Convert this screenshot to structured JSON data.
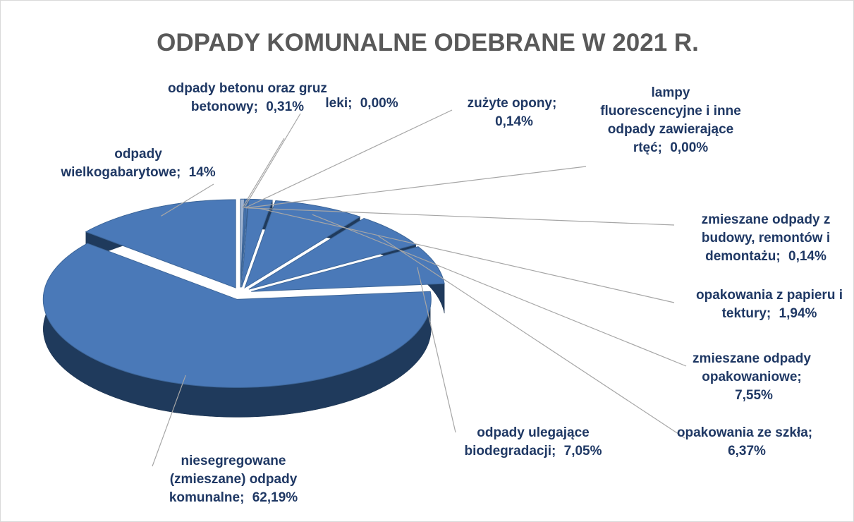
{
  "chart_data": {
    "type": "pie",
    "title": "ODPADY KOMUNALNE ODEBRANE W 2021 R.",
    "categories": [
      "odpady betonu oraz gruz betonowy;",
      "leki;",
      "zużyte opony;",
      "lampy fluorescencyjne i inne odpady zawierające rtęć;",
      "zmieszane odpady z budowy, remontów i demontażu;",
      "opakowania z papieru i tektury;",
      "zmieszane odpady opakowaniowe;",
      "opakowania ze szkła;",
      "odpady ulegające biodegradacji;",
      "niesegregowane (zmieszane) odpady komunalne;",
      "odpady wielkogabarytowe;"
    ],
    "values": [
      0.31,
      0,
      0.14,
      0,
      0.14,
      1.94,
      7.55,
      6.37,
      7.05,
      62.19,
      14
    ],
    "value_labels": [
      "0,31%",
      "0,00%",
      "0,14%",
      "0,00%",
      "0,14%",
      "1,94%",
      "7,55%",
      "6,37%",
      "7,05%",
      "62,19%",
      "14%"
    ],
    "color": "#4a79b8"
  }
}
